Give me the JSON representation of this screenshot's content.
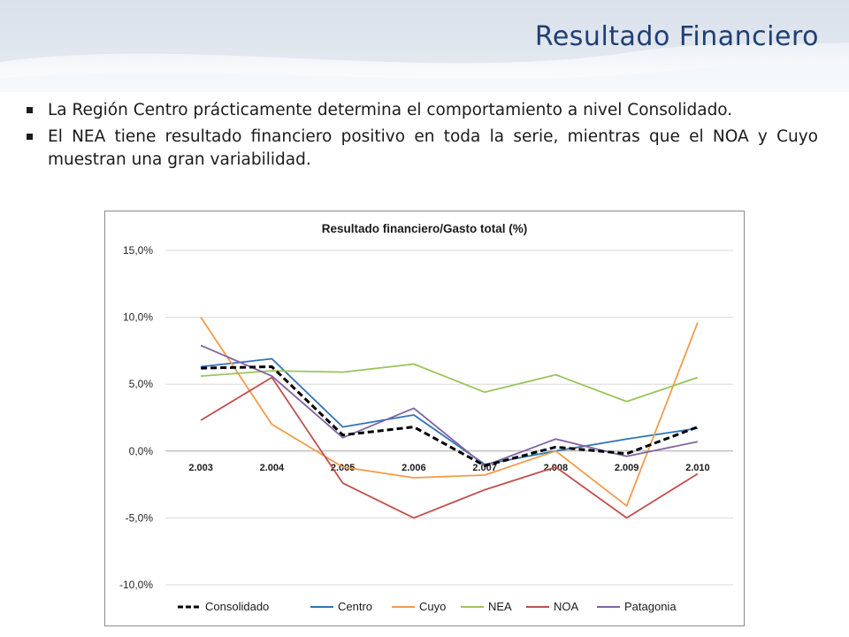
{
  "slide": {
    "title": "Resultado Financiero",
    "bullets": [
      "La Región Centro prácticamente determina el comportamiento a nivel Consolidado.",
      "El NEA tiene resultado financiero positivo en toda la serie, mientras que el NOA y Cuyo muestran una gran variabilidad."
    ]
  },
  "colors": {
    "title": "#1f3f74",
    "Consolidado": "#000000",
    "Centro": "#2e75b6",
    "Cuyo": "#f29b4b",
    "NEA": "#9bc45a",
    "NOA": "#c0504d",
    "Patagonia": "#8064a2",
    "grid": "#d9d9d9"
  },
  "chart_data": {
    "type": "line",
    "title": "Resultado financiero/Gasto total (%)",
    "xlabel": "",
    "ylabel": "",
    "categories": [
      "2.003",
      "2.004",
      "2.005",
      "2.006",
      "2.007",
      "2.008",
      "2.009",
      "2.010"
    ],
    "ylim": [
      -10,
      15
    ],
    "yticks": [
      15,
      10,
      5,
      0,
      -5,
      -10
    ],
    "ytick_labels": [
      "15,0%",
      "10,0%",
      "5,0%",
      "0,0%",
      "-5,0%",
      "-10,0%"
    ],
    "grid": true,
    "legend_position": "bottom",
    "series": [
      {
        "name": "Consolidado",
        "values": [
          6.2,
          6.3,
          1.2,
          1.8,
          -1.1,
          0.3,
          -0.2,
          1.8
        ],
        "dashed": true
      },
      {
        "name": "Centro",
        "values": [
          6.3,
          6.9,
          1.8,
          2.7,
          -1.0,
          0.0,
          0.9,
          1.7
        ],
        "dashed": false
      },
      {
        "name": "Cuyo",
        "values": [
          10.0,
          2.0,
          -1.2,
          -2.0,
          -1.8,
          0.0,
          -4.1,
          9.6
        ],
        "dashed": false
      },
      {
        "name": "NEA",
        "values": [
          5.6,
          6.0,
          5.9,
          6.5,
          4.4,
          5.7,
          3.7,
          5.5
        ],
        "dashed": false
      },
      {
        "name": "NOA",
        "values": [
          2.3,
          5.5,
          -2.4,
          -5.0,
          -2.9,
          -1.2,
          -5.0,
          -1.7
        ],
        "dashed": false
      },
      {
        "name": "Patagonia",
        "values": [
          7.9,
          5.6,
          1.0,
          3.2,
          -1.1,
          0.9,
          -0.4,
          0.7
        ],
        "dashed": false
      }
    ]
  }
}
